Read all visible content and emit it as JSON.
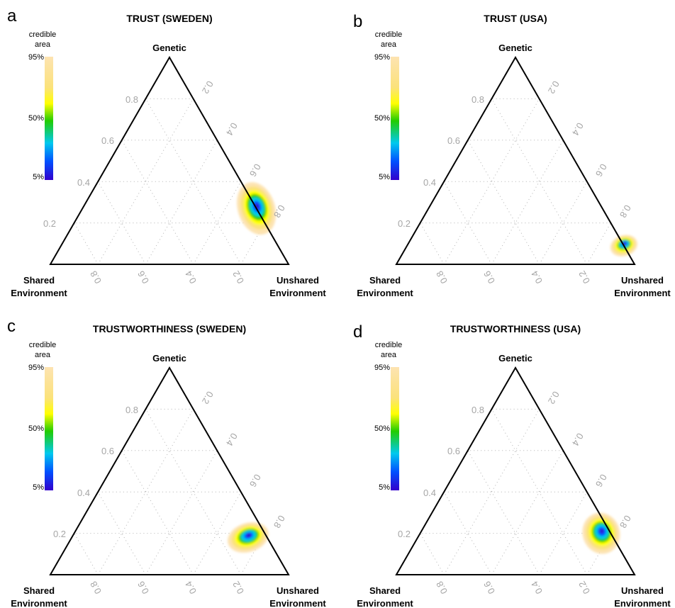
{
  "legend": {
    "title_line1": "credible",
    "title_line2": "area",
    "ticks": [
      "95%",
      "50%",
      "5%"
    ],
    "colors": {
      "p95": "#fde3b1",
      "p80": "#fbe27a",
      "p65": "#ffff00",
      "p50": "#22cc00",
      "p35": "#00c9ee",
      "p20": "#0050ff",
      "p5": "#3300cc"
    }
  },
  "chart_data": [
    {
      "type": "ternary-density",
      "panel": "a",
      "title": "TRUST (SWEDEN)",
      "vertices": {
        "top": "Genetic",
        "left_line1": "Shared",
        "left_line2": "Environment",
        "right_line1": "Unshared",
        "right_line2": "Environment"
      },
      "axis_ticks": {
        "genetic": [
          "0.2",
          "0.4",
          "0.6",
          "0.8"
        ],
        "unshared": [
          "0.2",
          "0.4",
          "0.6",
          "0.8"
        ],
        "shared": [
          "0.2",
          "0.4",
          "0.6",
          "0.8"
        ]
      },
      "grid": true,
      "mode": {
        "genetic": 0.27,
        "shared": 0.0,
        "unshared": 0.73
      },
      "spread": {
        "genetic": 0.13,
        "shared": 0.06
      }
    },
    {
      "type": "ternary-density",
      "panel": "b",
      "title": "TRUST (USA)",
      "vertices": {
        "top": "Genetic",
        "left_line1": "Shared",
        "left_line2": "Environment",
        "right_line1": "Unshared",
        "right_line2": "Environment"
      },
      "axis_ticks": {
        "genetic": [
          "0.2",
          "0.4",
          "0.6",
          "0.8"
        ],
        "unshared": [
          "0.2",
          "0.4",
          "0.6",
          "0.8"
        ],
        "shared": [
          "0.2",
          "0.4",
          "0.6",
          "0.8"
        ]
      },
      "grid": true,
      "mode": {
        "genetic": 0.09,
        "shared": 0.0,
        "unshared": 0.91
      },
      "spread": {
        "genetic": 0.05,
        "shared": 0.04
      }
    },
    {
      "type": "ternary-density",
      "panel": "c",
      "title": "TRUSTWORTHINESS (SWEDEN)",
      "vertices": {
        "top": "Genetic",
        "left_line1": "Shared",
        "left_line2": "Environment",
        "right_line1": "Unshared",
        "right_line2": "Environment"
      },
      "axis_ticks": {
        "genetic": [
          "0.2",
          "0.4",
          "0.6",
          "0.8"
        ],
        "unshared": [
          "0.2",
          "0.4",
          "0.6",
          "0.8"
        ],
        "shared": [
          "0.2",
          "0.4",
          "0.6",
          "0.8"
        ]
      },
      "grid": true,
      "mode": {
        "genetic": 0.18,
        "shared": 0.08,
        "unshared": 0.74
      },
      "spread": {
        "genetic": 0.07,
        "shared": 0.07
      }
    },
    {
      "type": "ternary-density",
      "panel": "d",
      "title": "TRUSTWORTHINESS (USA)",
      "vertices": {
        "top": "Genetic",
        "left_line1": "Shared",
        "left_line2": "Environment",
        "right_line1": "Unshared",
        "right_line2": "Environment"
      },
      "axis_ticks": {
        "genetic": [
          "0.2",
          "0.4",
          "0.6",
          "0.8"
        ],
        "unshared": [
          "0.2",
          "0.4",
          "0.6",
          "0.8"
        ],
        "shared": [
          "0.2",
          "0.4",
          "0.6",
          "0.8"
        ]
      },
      "grid": true,
      "mode": {
        "genetic": 0.2,
        "shared": 0.04,
        "unshared": 0.76
      },
      "spread": {
        "genetic": 0.1,
        "shared": 0.06
      }
    }
  ]
}
